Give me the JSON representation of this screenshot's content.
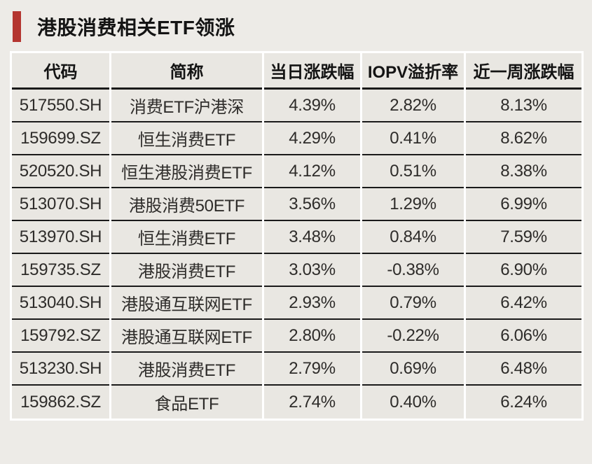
{
  "title": {
    "text": "港股消费相关ETF领涨"
  },
  "colors": {
    "accent_bar": "#b43530",
    "page_background": "#edebe7",
    "cell_background": "#e9e7e2",
    "row_divider": "#1a1a1a"
  },
  "chart_data": {
    "type": "table",
    "title": "港股消费相关ETF领涨",
    "columns": [
      "代码",
      "简称",
      "当日涨跌幅",
      "IOPV溢折率",
      "近一周涨跌幅"
    ],
    "rows": [
      [
        "517550.SH",
        "消费ETF沪港深",
        "4.39%",
        "2.82%",
        "8.13%"
      ],
      [
        "159699.SZ",
        "恒生消费ETF",
        "4.29%",
        "0.41%",
        "8.62%"
      ],
      [
        "520520.SH",
        "恒生港股消费ETF",
        "4.12%",
        "0.51%",
        "8.38%"
      ],
      [
        "513070.SH",
        "港股消费50ETF",
        "3.56%",
        "1.29%",
        "6.99%"
      ],
      [
        "513970.SH",
        "恒生消费ETF",
        "3.48%",
        "0.84%",
        "7.59%"
      ],
      [
        "159735.SZ",
        "港股消费ETF",
        "3.03%",
        "-0.38%",
        "6.90%"
      ],
      [
        "513040.SH",
        "港股通互联网ETF",
        "2.93%",
        "0.79%",
        "6.42%"
      ],
      [
        "159792.SZ",
        "港股通互联网ETF",
        "2.80%",
        "-0.22%",
        "6.06%"
      ],
      [
        "513230.SH",
        "港股消费ETF",
        "2.79%",
        "0.69%",
        "6.48%"
      ],
      [
        "159862.SZ",
        "食品ETF",
        "2.74%",
        "0.40%",
        "6.24%"
      ]
    ]
  }
}
